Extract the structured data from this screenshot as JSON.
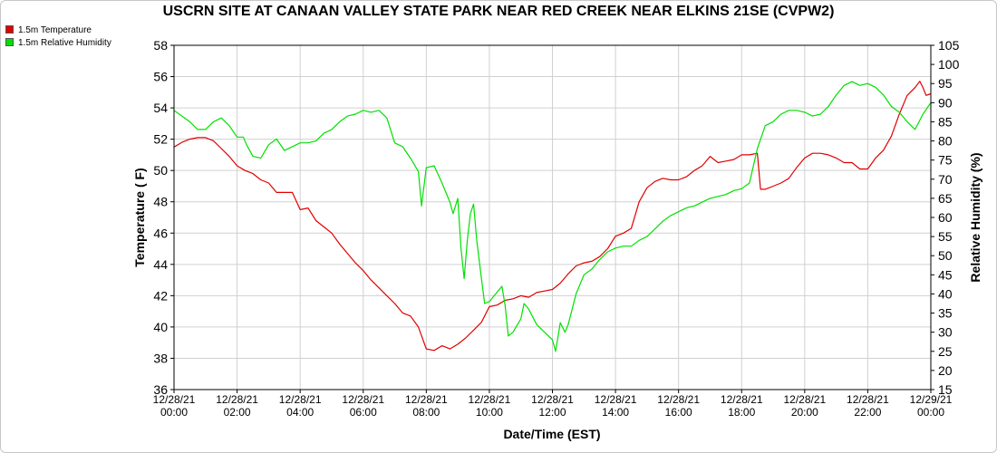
{
  "chart_data": {
    "type": "line",
    "title": "USCRN SITE AT CANAAN VALLEY STATE PARK NEAR RED CREEK NEAR ELKINS 21SE (CVPW2)",
    "xlabel": "Date/Time (EST)",
    "ylabel": "Temperature ( F)",
    "y2label": "Relative Humidity (%)",
    "x_ticks": [
      {
        "date": "12/28/21",
        "time": "00:00"
      },
      {
        "date": "12/28/21",
        "time": "02:00"
      },
      {
        "date": "12/28/21",
        "time": "04:00"
      },
      {
        "date": "12/28/21",
        "time": "06:00"
      },
      {
        "date": "12/28/21",
        "time": "08:00"
      },
      {
        "date": "12/28/21",
        "time": "10:00"
      },
      {
        "date": "12/28/21",
        "time": "12:00"
      },
      {
        "date": "12/28/21",
        "time": "14:00"
      },
      {
        "date": "12/28/21",
        "time": "16:00"
      },
      {
        "date": "12/28/21",
        "time": "18:00"
      },
      {
        "date": "12/28/21",
        "time": "20:00"
      },
      {
        "date": "12/28/21",
        "time": "22:00"
      },
      {
        "date": "12/29/21",
        "time": "00:00"
      }
    ],
    "xlim_hours": [
      0,
      24
    ],
    "ylim": [
      36,
      58
    ],
    "y_ticks": [
      36,
      38,
      40,
      42,
      44,
      46,
      48,
      50,
      52,
      54,
      56,
      58
    ],
    "y2lim": [
      15,
      105
    ],
    "y2_ticks": [
      15,
      20,
      25,
      30,
      35,
      40,
      45,
      50,
      55,
      60,
      65,
      70,
      75,
      80,
      85,
      90,
      95,
      100,
      105
    ],
    "grid": true,
    "legend_position": "top-left",
    "series": [
      {
        "name": "1.5m Temperature",
        "color": "#e00000",
        "axis": "left",
        "points": [
          [
            0,
            51.5
          ],
          [
            0.25,
            51.8
          ],
          [
            0.5,
            52.0
          ],
          [
            0.75,
            52.1
          ],
          [
            1.0,
            52.1
          ],
          [
            1.25,
            51.9
          ],
          [
            1.5,
            51.4
          ],
          [
            1.75,
            50.9
          ],
          [
            2.0,
            50.3
          ],
          [
            2.25,
            50.0
          ],
          [
            2.5,
            49.8
          ],
          [
            2.75,
            49.4
          ],
          [
            3.0,
            49.2
          ],
          [
            3.25,
            48.6
          ],
          [
            3.5,
            48.6
          ],
          [
            3.75,
            48.6
          ],
          [
            4.0,
            47.5
          ],
          [
            4.25,
            47.6
          ],
          [
            4.5,
            46.8
          ],
          [
            4.75,
            46.4
          ],
          [
            5.0,
            46.0
          ],
          [
            5.25,
            45.3
          ],
          [
            5.5,
            44.7
          ],
          [
            5.75,
            44.1
          ],
          [
            6.0,
            43.6
          ],
          [
            6.25,
            43.0
          ],
          [
            6.5,
            42.5
          ],
          [
            6.75,
            42.0
          ],
          [
            7.0,
            41.5
          ],
          [
            7.25,
            40.9
          ],
          [
            7.5,
            40.7
          ],
          [
            7.75,
            40.0
          ],
          [
            8.0,
            38.6
          ],
          [
            8.25,
            38.5
          ],
          [
            8.5,
            38.8
          ],
          [
            8.75,
            38.6
          ],
          [
            9.0,
            38.9
          ],
          [
            9.25,
            39.3
          ],
          [
            9.5,
            39.8
          ],
          [
            9.75,
            40.3
          ],
          [
            10.0,
            41.3
          ],
          [
            10.25,
            41.4
          ],
          [
            10.5,
            41.7
          ],
          [
            10.75,
            41.8
          ],
          [
            11.0,
            42.0
          ],
          [
            11.25,
            41.9
          ],
          [
            11.5,
            42.2
          ],
          [
            11.75,
            42.3
          ],
          [
            12.0,
            42.4
          ],
          [
            12.25,
            42.8
          ],
          [
            12.5,
            43.4
          ],
          [
            12.75,
            43.9
          ],
          [
            13.0,
            44.1
          ],
          [
            13.25,
            44.2
          ],
          [
            13.5,
            44.5
          ],
          [
            13.75,
            45.0
          ],
          [
            14.0,
            45.8
          ],
          [
            14.25,
            46.0
          ],
          [
            14.5,
            46.3
          ],
          [
            14.75,
            48.0
          ],
          [
            15.0,
            48.9
          ],
          [
            15.25,
            49.3
          ],
          [
            15.5,
            49.5
          ],
          [
            15.75,
            49.4
          ],
          [
            16.0,
            49.4
          ],
          [
            16.25,
            49.6
          ],
          [
            16.5,
            50.0
          ],
          [
            16.75,
            50.3
          ],
          [
            17.0,
            50.9
          ],
          [
            17.25,
            50.5
          ],
          [
            17.5,
            50.6
          ],
          [
            17.75,
            50.7
          ],
          [
            18.0,
            51.0
          ],
          [
            18.25,
            51.0
          ],
          [
            18.5,
            51.1
          ],
          [
            18.6,
            48.8
          ],
          [
            18.75,
            48.8
          ],
          [
            19.0,
            49.0
          ],
          [
            19.25,
            49.2
          ],
          [
            19.5,
            49.5
          ],
          [
            19.75,
            50.2
          ],
          [
            20.0,
            50.8
          ],
          [
            20.25,
            51.1
          ],
          [
            20.5,
            51.1
          ],
          [
            20.75,
            51.0
          ],
          [
            21.0,
            50.8
          ],
          [
            21.25,
            50.5
          ],
          [
            21.5,
            50.5
          ],
          [
            21.75,
            50.1
          ],
          [
            22.0,
            50.1
          ],
          [
            22.25,
            50.8
          ],
          [
            22.5,
            51.3
          ],
          [
            22.75,
            52.2
          ],
          [
            23.0,
            53.6
          ],
          [
            23.25,
            54.8
          ],
          [
            23.5,
            55.3
          ],
          [
            23.65,
            55.7
          ],
          [
            23.75,
            55.3
          ],
          [
            23.85,
            54.8
          ],
          [
            24.0,
            54.9
          ]
        ]
      },
      {
        "name": "1.5m Relative Humidity",
        "color": "#00e000",
        "axis": "right",
        "points": [
          [
            0,
            88.0
          ],
          [
            0.25,
            86.5
          ],
          [
            0.5,
            85.0
          ],
          [
            0.75,
            83.0
          ],
          [
            1.0,
            83.0
          ],
          [
            1.25,
            85.0
          ],
          [
            1.5,
            86.0
          ],
          [
            1.75,
            84.0
          ],
          [
            2.0,
            81.0
          ],
          [
            2.2,
            81.0
          ],
          [
            2.3,
            79.0
          ],
          [
            2.5,
            76.0
          ],
          [
            2.75,
            75.5
          ],
          [
            3.0,
            79.0
          ],
          [
            3.25,
            80.5
          ],
          [
            3.5,
            77.5
          ],
          [
            3.75,
            78.5
          ],
          [
            4.0,
            79.5
          ],
          [
            4.25,
            79.5
          ],
          [
            4.5,
            80.0
          ],
          [
            4.75,
            82.0
          ],
          [
            5.0,
            83.0
          ],
          [
            5.25,
            85.0
          ],
          [
            5.5,
            86.5
          ],
          [
            5.75,
            87.0
          ],
          [
            6.0,
            88.0
          ],
          [
            6.25,
            87.5
          ],
          [
            6.5,
            88.0
          ],
          [
            6.75,
            86.0
          ],
          [
            7.0,
            79.5
          ],
          [
            7.25,
            78.5
          ],
          [
            7.5,
            75.5
          ],
          [
            7.75,
            72.0
          ],
          [
            7.85,
            63.0
          ],
          [
            8.0,
            73.0
          ],
          [
            8.25,
            73.5
          ],
          [
            8.5,
            69.0
          ],
          [
            8.75,
            64.0
          ],
          [
            8.85,
            61.0
          ],
          [
            9.0,
            65.0
          ],
          [
            9.1,
            52.0
          ],
          [
            9.2,
            44.0
          ],
          [
            9.3,
            54.0
          ],
          [
            9.4,
            61.0
          ],
          [
            9.5,
            63.5
          ],
          [
            9.6,
            54.0
          ],
          [
            9.75,
            44.0
          ],
          [
            9.85,
            37.5
          ],
          [
            10.0,
            38.0
          ],
          [
            10.2,
            40.0
          ],
          [
            10.4,
            42.0
          ],
          [
            10.5,
            37.0
          ],
          [
            10.6,
            29.0
          ],
          [
            10.75,
            30.0
          ],
          [
            11.0,
            33.5
          ],
          [
            11.1,
            37.5
          ],
          [
            11.25,
            36.0
          ],
          [
            11.5,
            32.0
          ],
          [
            11.75,
            30.0
          ],
          [
            12.0,
            28.0
          ],
          [
            12.1,
            25.0
          ],
          [
            12.25,
            32.5
          ],
          [
            12.4,
            30.0
          ],
          [
            12.5,
            32.0
          ],
          [
            12.75,
            40.0
          ],
          [
            13.0,
            45.0
          ],
          [
            13.25,
            46.5
          ],
          [
            13.5,
            49.0
          ],
          [
            13.75,
            51.0
          ],
          [
            14.0,
            52.0
          ],
          [
            14.25,
            52.5
          ],
          [
            14.5,
            52.5
          ],
          [
            14.75,
            54.0
          ],
          [
            15.0,
            55.0
          ],
          [
            15.25,
            57.0
          ],
          [
            15.5,
            59.0
          ],
          [
            15.75,
            60.5
          ],
          [
            16.0,
            61.5
          ],
          [
            16.25,
            62.5
          ],
          [
            16.5,
            63.0
          ],
          [
            16.75,
            64.0
          ],
          [
            17.0,
            65.0
          ],
          [
            17.25,
            65.5
          ],
          [
            17.5,
            66.0
          ],
          [
            17.75,
            67.0
          ],
          [
            18.0,
            67.5
          ],
          [
            18.25,
            69.0
          ],
          [
            18.5,
            78.0
          ],
          [
            18.75,
            84.0
          ],
          [
            19.0,
            85.0
          ],
          [
            19.25,
            87.0
          ],
          [
            19.5,
            88.0
          ],
          [
            19.75,
            88.0
          ],
          [
            20.0,
            87.5
          ],
          [
            20.25,
            86.5
          ],
          [
            20.5,
            87.0
          ],
          [
            20.75,
            89.0
          ],
          [
            21.0,
            92.0
          ],
          [
            21.25,
            94.5
          ],
          [
            21.5,
            95.5
          ],
          [
            21.75,
            94.5
          ],
          [
            22.0,
            95.0
          ],
          [
            22.25,
            94.0
          ],
          [
            22.5,
            92.0
          ],
          [
            22.75,
            89.0
          ],
          [
            23.0,
            87.5
          ],
          [
            23.25,
            85.0
          ],
          [
            23.5,
            83.0
          ],
          [
            23.75,
            87.0
          ],
          [
            24.0,
            90.0
          ]
        ]
      }
    ]
  }
}
